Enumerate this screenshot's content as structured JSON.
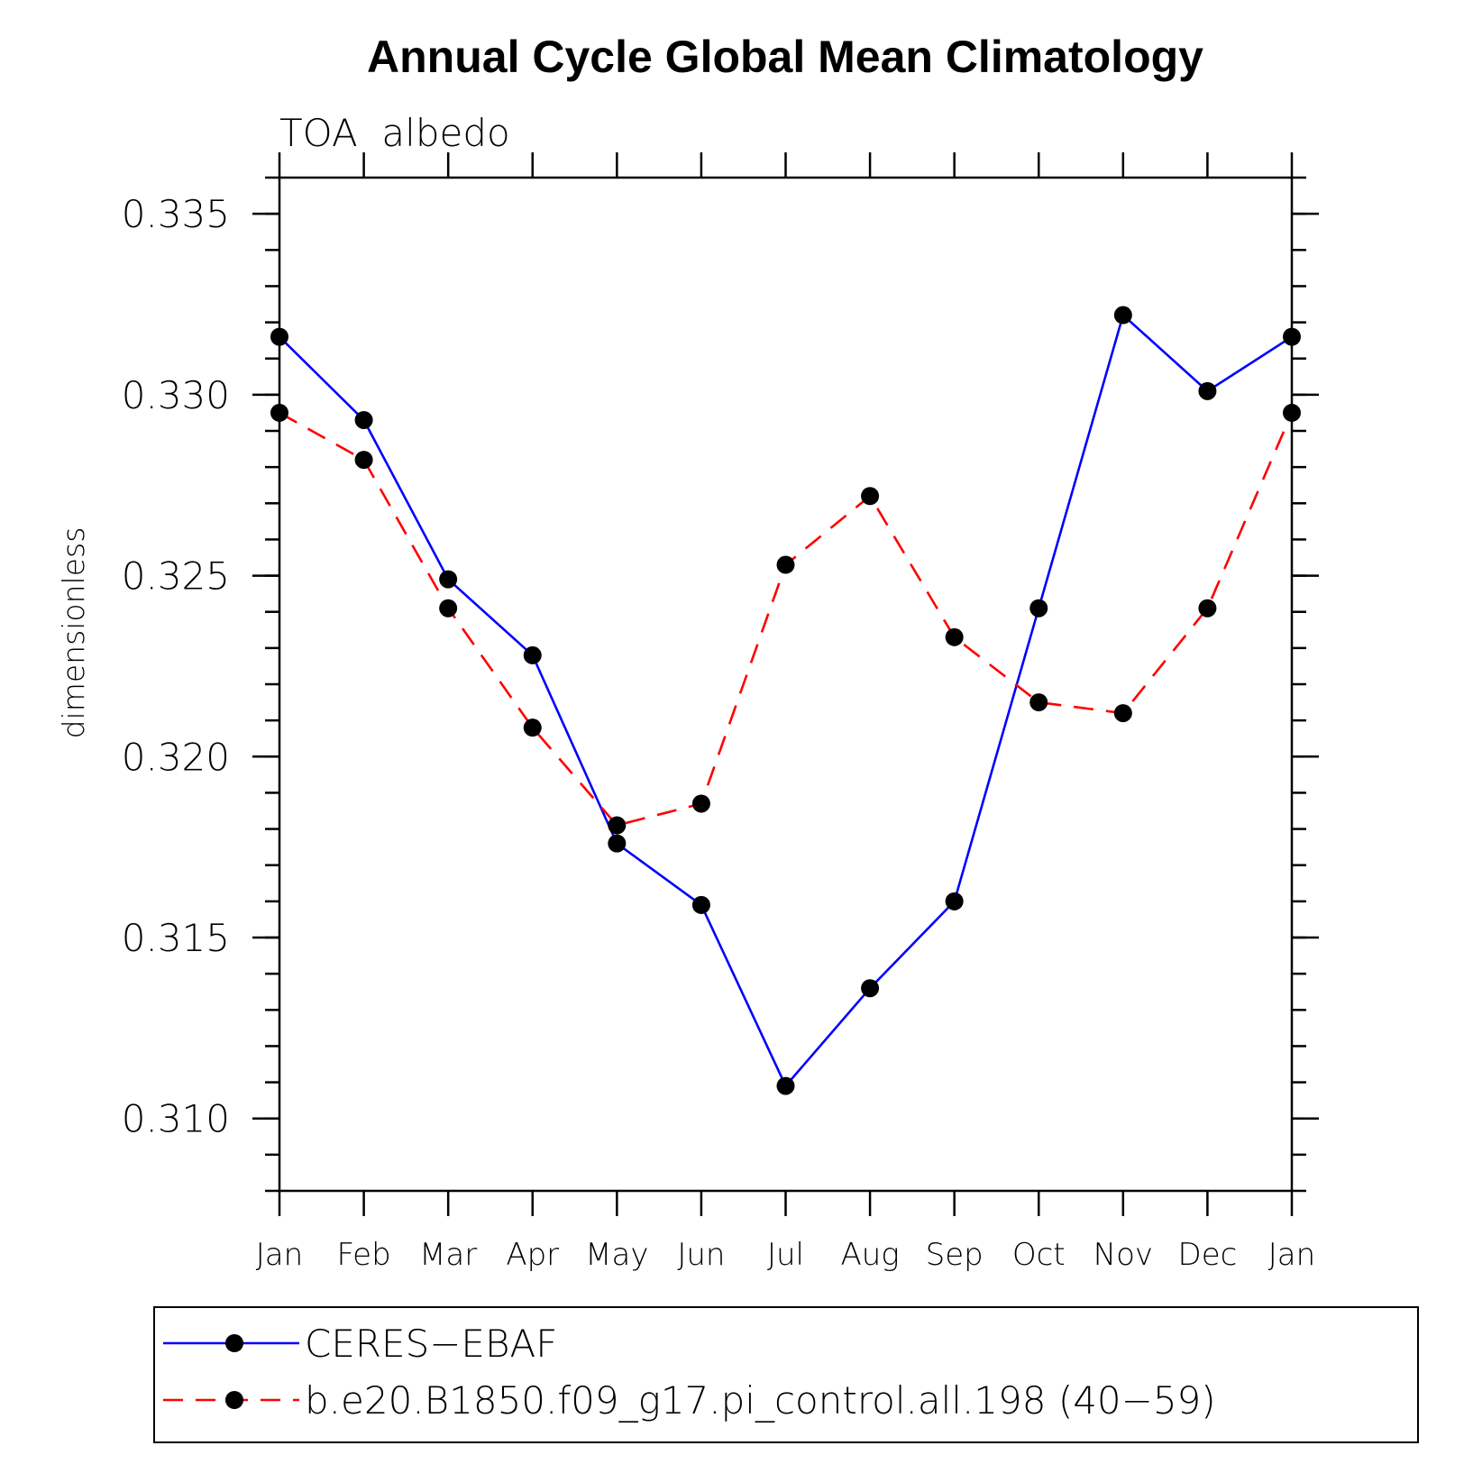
{
  "chart_data": {
    "type": "line",
    "title": "Annual Cycle Global Mean Climatology",
    "subtitle": "TOA  albedo",
    "xlabel": "",
    "ylabel": "dimensionless",
    "categories": [
      "Jan",
      "Feb",
      "Mar",
      "Apr",
      "May",
      "Jun",
      "Jul",
      "Aug",
      "Sep",
      "Oct",
      "Nov",
      "Dec",
      "Jan"
    ],
    "ylim": [
      0.308,
      0.336
    ],
    "y_major_ticks": [
      0.31,
      0.315,
      0.32,
      0.325,
      0.33,
      0.335
    ],
    "y_major_tick_labels": [
      "0.310",
      "0.315",
      "0.320",
      "0.325",
      "0.330",
      "0.335"
    ],
    "y_minor_tick_step": 0.001,
    "grid": false,
    "legend_placement": "bottom",
    "series": [
      {
        "name": "CERES−EBAF",
        "color": "#0000ff",
        "line_style": "solid",
        "marker": "filled-circle",
        "values": [
          0.3316,
          0.3293,
          0.3249,
          0.3228,
          0.3176,
          0.3159,
          0.3109,
          0.3136,
          0.316,
          0.3241,
          0.3322,
          0.3301,
          0.3316
        ]
      },
      {
        "name": "b.e20.B1850.f09_g17.pi_control.all.198 (40−59)",
        "color": "#ff0000",
        "line_style": "dashed",
        "marker": "filled-circle",
        "values": [
          0.3295,
          0.3282,
          0.3241,
          0.3208,
          0.3181,
          0.3187,
          0.3253,
          0.3272,
          0.3233,
          0.3215,
          0.3212,
          0.3241,
          0.3295
        ]
      }
    ]
  }
}
